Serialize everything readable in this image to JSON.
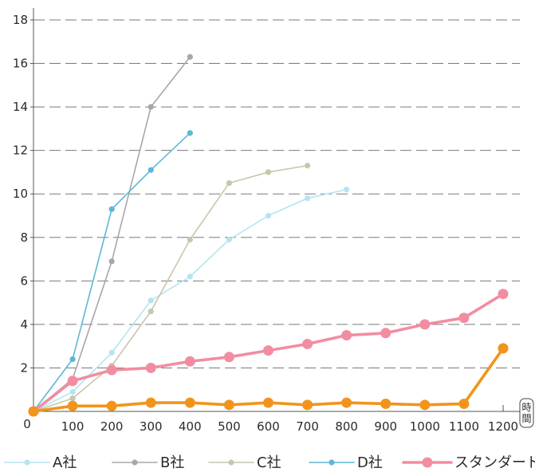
{
  "chart_data": {
    "type": "line",
    "title": "",
    "xlabel": "時間",
    "ylabel": "",
    "origin_label": "0",
    "xlim": [
      0,
      1200
    ],
    "ylim": [
      0,
      18
    ],
    "x_ticks": [
      100,
      200,
      300,
      400,
      500,
      600,
      700,
      800,
      900,
      1000,
      1100,
      1200
    ],
    "y_ticks": [
      2,
      4,
      6,
      8,
      10,
      12,
      14,
      16,
      18
    ],
    "grid": "horizontal-dashed",
    "legend_position": "bottom",
    "series": [
      {
        "name": "A社",
        "color": "#b5e4f0",
        "x": [
          0,
          100,
          200,
          300,
          400,
          500,
          600,
          700,
          800
        ],
        "y": [
          0,
          0.9,
          2.7,
          5.1,
          6.2,
          7.9,
          9.0,
          9.8,
          10.2
        ]
      },
      {
        "name": "B社",
        "color": "#a7a7a7",
        "x": [
          0,
          100,
          200,
          300,
          400
        ],
        "y": [
          0,
          1.5,
          6.9,
          14.0,
          16.3
        ]
      },
      {
        "name": "C社",
        "color": "#c6c7ac",
        "x": [
          0,
          100,
          200,
          300,
          400,
          500,
          600,
          700
        ],
        "y": [
          0,
          0.6,
          2.1,
          4.6,
          7.9,
          10.5,
          11.0,
          11.3
        ]
      },
      {
        "name": "D社",
        "color": "#5fb6d6",
        "x": [
          0,
          100,
          200,
          300,
          400
        ],
        "y": [
          0,
          2.4,
          9.3,
          11.1,
          12.8
        ]
      },
      {
        "name": "スタンダード",
        "color": "#f28da1",
        "x": [
          0,
          100,
          200,
          300,
          400,
          500,
          600,
          700,
          800,
          900,
          1000,
          1100,
          1200
        ],
        "y": [
          0,
          1.4,
          1.9,
          2.0,
          2.3,
          2.5,
          2.8,
          3.1,
          3.5,
          3.6,
          4.0,
          4.3,
          5.4
        ]
      },
      {
        "name": "",
        "color": "#f2941c",
        "x": [
          0,
          100,
          200,
          300,
          400,
          500,
          600,
          700,
          800,
          900,
          1000,
          1100,
          1200
        ],
        "y": [
          0,
          0.25,
          0.25,
          0.4,
          0.4,
          0.3,
          0.4,
          0.3,
          0.4,
          0.35,
          0.3,
          0.35,
          2.9
        ]
      }
    ]
  }
}
